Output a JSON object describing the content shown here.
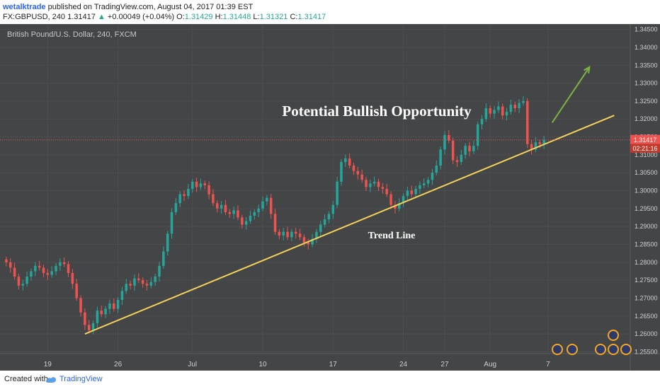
{
  "header": {
    "author": "wetalktrade",
    "published_text": "published on TradingView.com, August 04, 2017 01:39 EST",
    "symbol": "FX:GBPUSD, 240",
    "last": "1.31417",
    "change_arrow": "▲",
    "change": "+0.00049 (+0.04%)",
    "o_label": "O:",
    "o_value": "1.31429",
    "h_label": "H:",
    "h_value": "1.31448",
    "l_label": "L:",
    "l_value": "1.31321",
    "c_label": "C:",
    "c_value": "1.31417"
  },
  "footer": {
    "created_with": "Created with",
    "brand": "TradingView",
    "logo_icon": "tradingview-logo-icon"
  },
  "colors": {
    "background": "#444547",
    "grid": "#4d4e50",
    "up": "#26a69a",
    "down": "#ef5350",
    "trend_line": "#f5d25a",
    "arrow": "#7cb342",
    "price_label_bg": "#ef5350",
    "header_green": "#26a69a"
  },
  "chart_data": {
    "type": "candlestick",
    "title": "British Pound/U.S. Dollar, 240, FXCM",
    "annotations": {
      "headline": "Potential Bullish Opportunity",
      "trend_label": "Trend Line"
    },
    "current_price_label": "1.31417",
    "countdown_label": "02:21:16",
    "current_price": 1.31417,
    "y_range": [
      1.2545,
      1.3465
    ],
    "y_ticks": [
      "1.34500",
      "1.34000",
      "1.33500",
      "1.33000",
      "1.32500",
      "1.32000",
      "1.31500",
      "1.31000",
      "1.30500",
      "1.30000",
      "1.29500",
      "1.29000",
      "1.28500",
      "1.28000",
      "1.27500",
      "1.27000",
      "1.26500",
      "1.26000",
      "1.25500"
    ],
    "x_tick_labels": [
      "19",
      "26",
      "Jul",
      "10",
      "17",
      "24",
      "27",
      "Aug",
      "7"
    ],
    "x_tick_index": [
      10,
      27,
      45,
      62,
      79,
      96,
      106,
      117,
      131
    ],
    "n_bars": 150,
    "trend_line": {
      "from": [
        19,
        1.26
      ],
      "to": [
        147,
        1.321
      ]
    },
    "arrow": {
      "from": [
        132,
        1.319
      ],
      "to": [
        141,
        1.3345
      ]
    },
    "closes": [
      1.28,
      1.2785,
      1.276,
      1.2735,
      1.274,
      1.276,
      1.2775,
      1.279,
      1.2785,
      1.277,
      1.2765,
      1.2775,
      1.279,
      1.28,
      1.2795,
      1.277,
      1.274,
      1.27,
      1.266,
      1.2625,
      1.261,
      1.263,
      1.2665,
      1.2655,
      1.267,
      1.2685,
      1.267,
      1.2695,
      1.272,
      1.274,
      1.2735,
      1.2755,
      1.275,
      1.274,
      1.2735,
      1.2745,
      1.276,
      1.279,
      1.283,
      1.288,
      1.294,
      1.2965,
      1.299,
      1.2985,
      1.3005,
      1.3025,
      1.301,
      1.302,
      1.3015,
      1.299,
      1.2965,
      1.295,
      1.296,
      1.294,
      1.2935,
      1.2945,
      1.2925,
      1.2905,
      1.2915,
      1.293,
      1.294,
      1.295,
      1.297,
      1.298,
      1.2935,
      1.2885,
      1.2875,
      1.2885,
      1.287,
      1.2885,
      1.288,
      1.287,
      1.2855,
      1.285,
      1.2865,
      1.2885,
      1.2905,
      1.292,
      1.2935,
      1.296,
      1.3025,
      1.308,
      1.309,
      1.307,
      1.3055,
      1.3045,
      1.303,
      1.301,
      1.302,
      1.3025,
      1.301,
      1.3005,
      1.299,
      1.296,
      1.295,
      1.2965,
      1.2985,
      1.3,
      1.299,
      1.3005,
      1.3015,
      1.302,
      1.303,
      1.305,
      1.307,
      1.3115,
      1.3155,
      1.314,
      1.3085,
      1.308,
      1.31,
      1.3125,
      1.311,
      1.3125,
      1.3185,
      1.32,
      1.323,
      1.3215,
      1.3225,
      1.3235,
      1.321,
      1.322,
      1.324,
      1.323,
      1.3245,
      1.325,
      1.313,
      1.3115,
      1.3135,
      1.313,
      1.3142
    ]
  }
}
